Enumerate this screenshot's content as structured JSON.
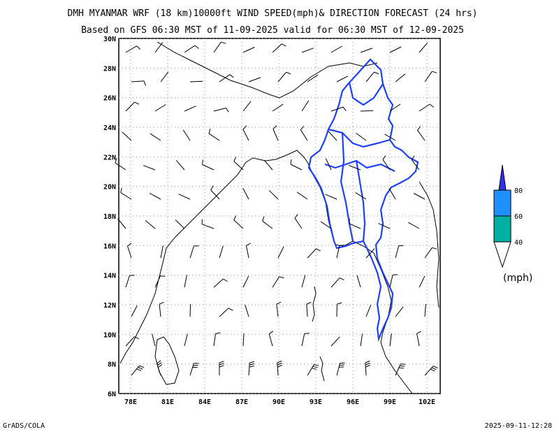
{
  "title": "DMH MYANMAR WRF (18 km)10000ft WIND SPEED(mph)& DIRECTION FORECAST (24 hrs)",
  "subtitle": "Based on GFS 06:30 MST of 11-09-2025 valid for 06:30 MST of 12-09-2025",
  "footer_left": "GrADS/COLA",
  "footer_right": "2025-09-11-12:28",
  "lat_labels": [
    "30N",
    "28N",
    "26N",
    "24N",
    "22N",
    "20N",
    "18N",
    "16N",
    "14N",
    "12N",
    "10N",
    "8N",
    "6N"
  ],
  "lon_labels": [
    "78E",
    "81E",
    "84E",
    "87E",
    "90E",
    "93E",
    "96E",
    "99E",
    "102E"
  ],
  "colorbar": {
    "labels": [
      "40",
      "60",
      "80"
    ],
    "unit": "(mph)",
    "colors": [
      "#ffffff",
      "#00b0a0",
      "#1e90ff",
      "#3030f0",
      "#ffffff"
    ]
  },
  "colors": {
    "boundary": "#2040ff",
    "coast": "#000000",
    "grid": "#909090"
  }
}
